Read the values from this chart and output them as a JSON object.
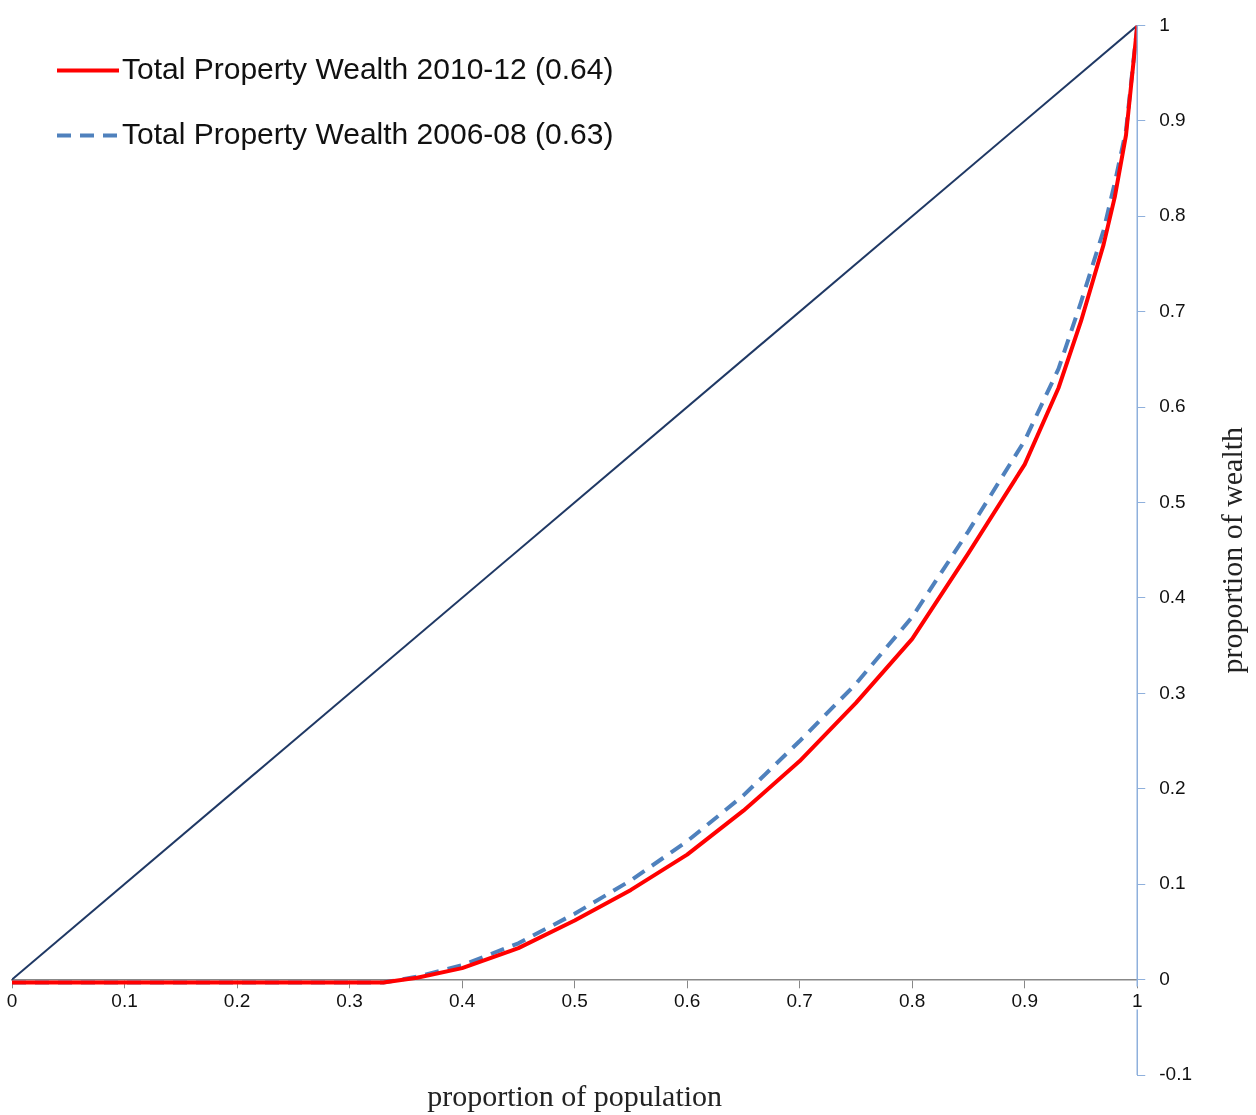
{
  "chart_data": {
    "type": "line",
    "xlabel": "proportion of population",
    "ylabel": "proportion of wealth",
    "xlim": [
      0,
      1
    ],
    "ylim": [
      -0.1,
      1
    ],
    "xticks": [
      0,
      0.1,
      0.2,
      0.3,
      0.4,
      0.5,
      0.6,
      0.7,
      0.8,
      0.9,
      1
    ],
    "yticks": [
      -0.1,
      0,
      0.1,
      0.2,
      0.3,
      0.4,
      0.5,
      0.6,
      0.7,
      0.8,
      0.9,
      1
    ],
    "grid": false,
    "legend": "top left",
    "marker": "none",
    "series": [
      {
        "color": "#1f3864",
        "line_style": "solid",
        "x": [
          0,
          1
        ],
        "values": [
          0,
          1
        ]
      },
      {
        "name": "Total Property Wealth 2010-12 (0.64)",
        "color": "#ff0000",
        "line_style": "solid",
        "x": [
          0,
          0.1,
          0.2,
          0.3,
          0.33,
          0.36,
          0.4,
          0.45,
          0.5,
          0.55,
          0.6,
          0.65,
          0.7,
          0.75,
          0.8,
          0.85,
          0.9,
          0.93,
          0.95,
          0.97,
          0.98,
          0.99,
          1
        ],
        "values": [
          -0.003,
          -0.003,
          -0.003,
          -0.003,
          -0.003,
          0.002,
          0.012,
          0.033,
          0.062,
          0.094,
          0.131,
          0.177,
          0.229,
          0.29,
          0.357,
          0.447,
          0.54,
          0.62,
          0.69,
          0.77,
          0.82,
          0.885,
          1
        ]
      },
      {
        "name": "Total Property Wealth 2006-08 (0.63)",
        "color": "#4f81bd",
        "line_style": "dashed",
        "x": [
          0,
          0.1,
          0.2,
          0.3,
          0.33,
          0.36,
          0.4,
          0.45,
          0.5,
          0.55,
          0.6,
          0.65,
          0.7,
          0.75,
          0.8,
          0.85,
          0.9,
          0.93,
          0.95,
          0.97,
          0.98,
          0.99,
          1
        ],
        "values": [
          -0.003,
          -0.003,
          -0.003,
          -0.003,
          -0.003,
          0.003,
          0.015,
          0.038,
          0.069,
          0.104,
          0.145,
          0.193,
          0.25,
          0.31,
          0.38,
          0.47,
          0.565,
          0.64,
          0.71,
          0.785,
          0.835,
          0.89,
          1
        ]
      }
    ]
  }
}
